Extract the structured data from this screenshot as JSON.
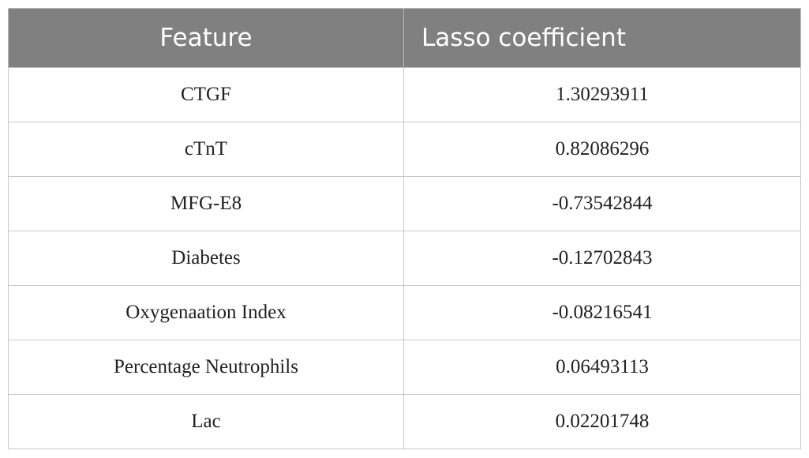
{
  "table": {
    "header": [
      "Feature",
      "Lasso coefficient"
    ],
    "rows": [
      [
        "CTGF",
        "1.30293911"
      ],
      [
        "cTnT",
        "0.82086296"
      ],
      [
        "MFG-E8",
        "-0.73542844"
      ],
      [
        "Diabetes",
        "-0.12702843"
      ],
      [
        "Oxygenaation Index",
        "-0.08216541"
      ],
      [
        "Percentage Neutrophils",
        "0.06493113"
      ],
      [
        "Lac",
        "0.02201748"
      ]
    ]
  }
}
